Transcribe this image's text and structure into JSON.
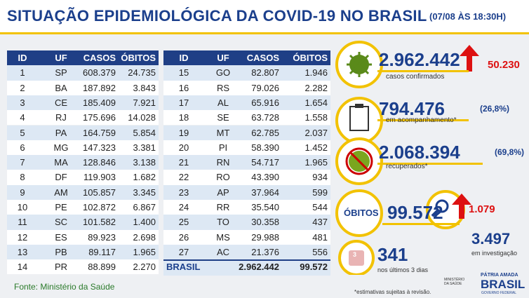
{
  "header": {
    "title": "SITUAÇÃO EPIDEMIOLÓGICA DA COVID-19 NO BRASIL",
    "date": "(07/08 ÀS 18:30H)"
  },
  "tables": [
    {
      "columns": [
        "ID",
        "UF",
        "CASOS",
        "ÓBITOS"
      ],
      "rows": [
        [
          "1",
          "SP",
          "608.379",
          "24.735"
        ],
        [
          "2",
          "BA",
          "187.892",
          "3.843"
        ],
        [
          "3",
          "CE",
          "185.409",
          "7.921"
        ],
        [
          "4",
          "RJ",
          "175.696",
          "14.028"
        ],
        [
          "5",
          "PA",
          "164.759",
          "5.854"
        ],
        [
          "6",
          "MG",
          "147.323",
          "3.381"
        ],
        [
          "7",
          "MA",
          "128.846",
          "3.138"
        ],
        [
          "8",
          "DF",
          "119.903",
          "1.682"
        ],
        [
          "9",
          "AM",
          "105.857",
          "3.345"
        ],
        [
          "10",
          "PE",
          "102.872",
          "6.867"
        ],
        [
          "11",
          "SC",
          "101.582",
          "1.400"
        ],
        [
          "12",
          "ES",
          "89.923",
          "2.698"
        ],
        [
          "13",
          "PB",
          "89.117",
          "1.965"
        ],
        [
          "14",
          "PR",
          "88.899",
          "2.270"
        ]
      ]
    },
    {
      "columns": [
        "ID",
        "UF",
        "CASOS",
        "ÓBITOS"
      ],
      "rows": [
        [
          "15",
          "GO",
          "82.807",
          "1.946"
        ],
        [
          "16",
          "RS",
          "79.026",
          "2.282"
        ],
        [
          "17",
          "AL",
          "65.916",
          "1.654"
        ],
        [
          "18",
          "SE",
          "63.728",
          "1.558"
        ],
        [
          "19",
          "MT",
          "62.785",
          "2.037"
        ],
        [
          "20",
          "PI",
          "58.390",
          "1.452"
        ],
        [
          "21",
          "RN",
          "54.717",
          "1.965"
        ],
        [
          "22",
          "RO",
          "43.390",
          "934"
        ],
        [
          "23",
          "AP",
          "37.964",
          "599"
        ],
        [
          "24",
          "RR",
          "35.540",
          "544"
        ],
        [
          "25",
          "TO",
          "30.358",
          "437"
        ],
        [
          "26",
          "MS",
          "29.988",
          "481"
        ],
        [
          "27",
          "AC",
          "21.376",
          "556"
        ]
      ],
      "total": [
        "BRASIL",
        "2.962.442",
        "99.572"
      ]
    }
  ],
  "source": "Fonte: Ministério da Saúde",
  "stats": {
    "confirmed": {
      "value": "2.962.442",
      "label": "casos confirmados",
      "delta": "50.230"
    },
    "monitoring": {
      "value": "794.476",
      "share": "(26,8%)",
      "label": "em acompanhamento*"
    },
    "recovered": {
      "value": "2.068.394",
      "share": "(69,8%)",
      "label": "recuperados*"
    },
    "deaths": {
      "label": "ÓBITOS",
      "value": "99.572",
      "delta": "1.079"
    },
    "recent": {
      "icon": "3",
      "value": "341",
      "label": "nos últimos 3 dias"
    },
    "investigation": {
      "value": "3.497",
      "label": "em investigação"
    }
  },
  "note": "*estimativas sujeitas à revisão.",
  "logos": {
    "ministry": "MINISTÉRIO DA SAÚDE",
    "motto": "PÁTRIA AMADA",
    "country": "BRASIL",
    "government": "GOVERNO FEDERAL"
  }
}
